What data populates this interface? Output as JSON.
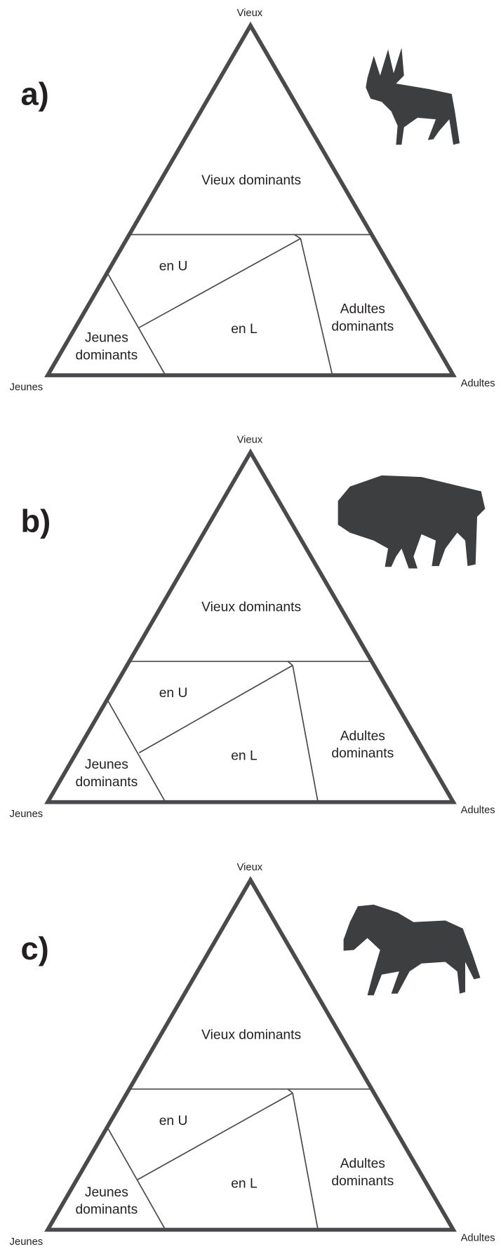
{
  "panels": [
    {
      "label": "a)",
      "corners": {
        "top": "Vieux",
        "left": "Jeunes",
        "right": "Adultes"
      },
      "regions": {
        "vieux_dominants": "Vieux dominants",
        "en_u": "en U",
        "en_l": "en L",
        "adultes_dominants": [
          "Adultes",
          "dominants"
        ],
        "jeunes_dominants": [
          "Jeunes",
          "dominants"
        ]
      }
    },
    {
      "label": "b)",
      "corners": {
        "top": "Vieux",
        "left": "Jeunes",
        "right": "Adultes"
      },
      "regions": {
        "vieux_dominants": "Vieux dominants",
        "en_u": "en U",
        "en_l": "en L",
        "adultes_dominants": [
          "Adultes",
          "dominants"
        ],
        "jeunes_dominants": [
          "Jeunes",
          "dominants"
        ]
      }
    },
    {
      "label": "c)",
      "corners": {
        "top": "Vieux",
        "left": "Jeunes",
        "right": "Adultes"
      },
      "regions": {
        "vieux_dominants": "Vieux dominants",
        "en_u": "en U",
        "en_l": "en L",
        "adultes_dominants": [
          "Adultes",
          "dominants"
        ],
        "jeunes_dominants": [
          "Jeunes",
          "dominants"
        ]
      }
    }
  ]
}
